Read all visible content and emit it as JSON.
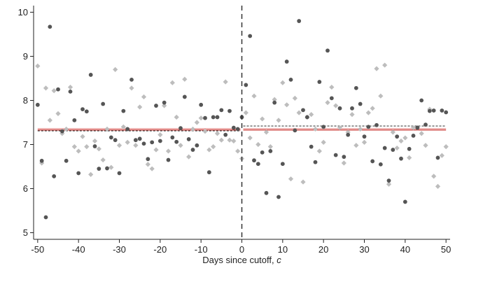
{
  "chart_data": {
    "type": "scatter",
    "xlabel": "Days since cutoff, ",
    "xlabel_italic": "c",
    "xlim": [
      -51,
      51
    ],
    "ylim": [
      4.85,
      10.15
    ],
    "xticks": [
      -50,
      -40,
      -30,
      -20,
      -10,
      0,
      10,
      20,
      30,
      40,
      50
    ],
    "yticks": [
      5,
      6,
      7,
      8,
      9,
      10
    ],
    "cutoff_x": 0,
    "grid": false,
    "legend": "none",
    "series": [
      {
        "marker": "circle",
        "color": "#555555",
        "x": [
          -50,
          -49,
          -48,
          -47,
          -46,
          -45,
          -44,
          -43,
          -42,
          -41,
          -40,
          -39,
          -38,
          -37,
          -36,
          -35,
          -34,
          -33,
          -32,
          -31,
          -30,
          -29,
          -28,
          -27,
          -26,
          -25,
          -24,
          -23,
          -22,
          -21,
          -20,
          -19,
          -18,
          -17,
          -16,
          -15,
          -14,
          -13,
          -12,
          -11,
          -10,
          -9,
          -8,
          -7,
          -6,
          -5,
          -4,
          -3,
          -2,
          -1,
          0,
          1,
          2,
          3,
          4,
          5,
          6,
          7,
          8,
          9,
          10,
          11,
          12,
          13,
          14,
          15,
          16,
          17,
          18,
          19,
          20,
          21,
          22,
          23,
          24,
          25,
          26,
          27,
          28,
          29,
          30,
          31,
          32,
          33,
          34,
          35,
          36,
          37,
          38,
          39,
          40,
          41,
          42,
          43,
          44,
          45,
          46,
          47,
          48,
          49,
          50
        ],
        "y": [
          7.9,
          6.63,
          5.35,
          9.67,
          6.28,
          8.25,
          7.3,
          6.63,
          8.2,
          7.55,
          6.35,
          7.8,
          7.75,
          8.58,
          6.96,
          6.45,
          7.92,
          6.46,
          7.16,
          7.1,
          6.35,
          7.76,
          7.35,
          8.47,
          7.1,
          7.13,
          7.02,
          6.67,
          7.05,
          7.88,
          7.08,
          7.95,
          6.65,
          7.16,
          7.06,
          7.37,
          8.08,
          7.12,
          6.88,
          6.98,
          7.9,
          7.6,
          6.37,
          7.62,
          7.62,
          7.78,
          7.22,
          7.76,
          7.38,
          7.35,
          7.62,
          8.35,
          9.46,
          6.64,
          6.56,
          6.82,
          5.9,
          6.85,
          7.95,
          5.81,
          6.56,
          8.88,
          8.47,
          7.32,
          9.8,
          7.78,
          7.62,
          6.95,
          6.6,
          8.42,
          7.4,
          9.13,
          8.05,
          6.76,
          7.82,
          6.72,
          7.22,
          7.82,
          8.28,
          7.92,
          7.18,
          7.4,
          6.62,
          7.44,
          6.55,
          6.92,
          6.18,
          6.88,
          7.18,
          6.68,
          5.7,
          6.9,
          7.2,
          7.38,
          8.0,
          7.45,
          7.76,
          7.77,
          6.7,
          7.77,
          7.73
        ]
      },
      {
        "marker": "diamond",
        "color": "#bdbdbd",
        "x": [
          -50,
          -49,
          -48,
          -47,
          -46,
          -45,
          -44,
          -43,
          -42,
          -41,
          -40,
          -39,
          -38,
          -37,
          -36,
          -35,
          -34,
          -33,
          -32,
          -31,
          -30,
          -29,
          -28,
          -27,
          -26,
          -25,
          -24,
          -23,
          -22,
          -21,
          -20,
          -19,
          -18,
          -17,
          -16,
          -15,
          -14,
          -13,
          -12,
          -11,
          -10,
          -9,
          -8,
          -7,
          -6,
          -5,
          -4,
          -3,
          -2,
          -1,
          0,
          1,
          2,
          3,
          4,
          5,
          6,
          7,
          8,
          9,
          10,
          11,
          12,
          13,
          14,
          15,
          16,
          17,
          18,
          19,
          20,
          21,
          22,
          23,
          24,
          25,
          26,
          27,
          28,
          29,
          30,
          31,
          32,
          33,
          34,
          35,
          36,
          37,
          38,
          39,
          40,
          41,
          42,
          43,
          44,
          45,
          46,
          47,
          48,
          49,
          50
        ],
        "y": [
          8.78,
          6.58,
          8.28,
          7.55,
          8.22,
          7.7,
          7.25,
          7.35,
          8.3,
          6.95,
          6.85,
          7.18,
          6.95,
          6.32,
          7.08,
          6.9,
          6.65,
          7.35,
          6.48,
          8.7,
          6.98,
          7.4,
          7.05,
          8.28,
          6.98,
          7.85,
          8.08,
          6.55,
          6.45,
          6.88,
          7.22,
          7.88,
          6.85,
          8.4,
          7.62,
          6.98,
          8.48,
          6.72,
          7.35,
          7.5,
          7.6,
          7.3,
          6.88,
          6.95,
          7.25,
          7.1,
          8.42,
          7.1,
          7.08,
          6.85,
          6.68,
          7.72,
          7.15,
          8.1,
          7.0,
          7.58,
          7.28,
          6.95,
          8.02,
          7.55,
          8.4,
          7.9,
          6.22,
          8.05,
          7.72,
          6.15,
          7.62,
          7.68,
          7.35,
          6.85,
          7.05,
          7.95,
          8.3,
          7.88,
          7.38,
          6.58,
          7.28,
          7.68,
          6.98,
          7.35,
          7.05,
          7.72,
          7.82,
          8.72,
          8.1,
          8.8,
          6.1,
          7.28,
          6.92,
          7.08,
          7.15,
          6.7,
          7.38,
          7.38,
          7.25,
          6.98,
          7.8,
          6.28,
          6.05,
          6.75,
          6.95
        ]
      }
    ],
    "fit_lines": [
      {
        "side": "left",
        "color": "#c8302c",
        "style": "solid",
        "y": 7.33
      },
      {
        "side": "left",
        "color": "#e58a87",
        "style": "solid",
        "y": 7.36
      },
      {
        "side": "left",
        "color": "#444444",
        "style": "dashed",
        "y": 7.31
      },
      {
        "side": "right",
        "color": "#c8302c",
        "style": "solid",
        "y": 7.33
      },
      {
        "side": "right",
        "color": "#e58a87",
        "style": "solid",
        "y": 7.36
      },
      {
        "side": "right",
        "color": "#444444",
        "style": "dashed",
        "y": 7.42
      }
    ]
  }
}
